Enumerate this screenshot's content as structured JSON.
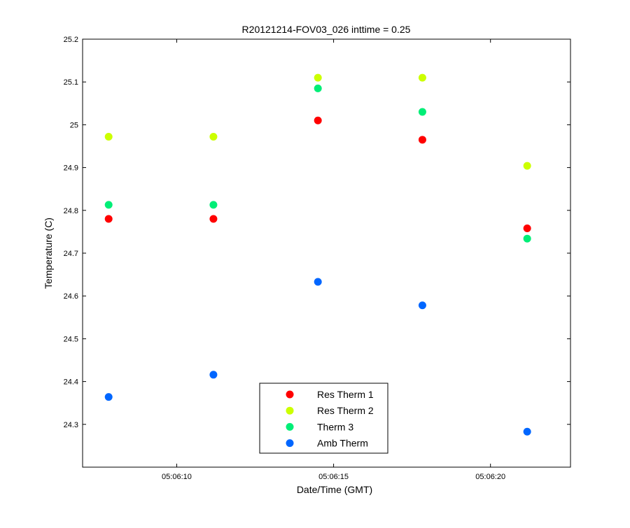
{
  "chart_data": {
    "type": "scatter",
    "title": "R20121214-FOV03_026 inttime = 0.25",
    "xlabel": "Date/Time (GMT)",
    "ylabel": "Temperature (C)",
    "x_unit": "time (hh:mm:ss)",
    "xlim": [
      "05:06:07.00",
      "05:06:22.55"
    ],
    "ylim": [
      24.2,
      25.2
    ],
    "x_ticks": [
      "05:06:10",
      "05:06:15",
      "05:06:20"
    ],
    "y_ticks": [
      "24.3",
      "24.4",
      "24.5",
      "24.6",
      "24.7",
      "24.8",
      "24.9",
      "25",
      "25.1",
      "25.2"
    ],
    "grid": false,
    "legend_position": "bottom-center",
    "x": [
      "05:06:07.83",
      "05:06:11.17",
      "05:06:14.50",
      "05:06:17.83",
      "05:06:21.17"
    ],
    "series": [
      {
        "name": "Res Therm 1",
        "color": "#ff0000",
        "values": [
          24.78,
          24.78,
          25.01,
          24.965,
          24.758
        ]
      },
      {
        "name": "Res Therm 2",
        "color": "#ccff00",
        "values": [
          24.972,
          24.972,
          25.11,
          25.11,
          24.904
        ]
      },
      {
        "name": "Therm 3",
        "color": "#00ee77",
        "values": [
          24.813,
          24.813,
          25.085,
          25.03,
          24.734
        ]
      },
      {
        "name": "Amb Therm",
        "color": "#0066ff",
        "values": [
          24.364,
          24.416,
          24.633,
          24.578,
          24.283
        ]
      }
    ]
  }
}
